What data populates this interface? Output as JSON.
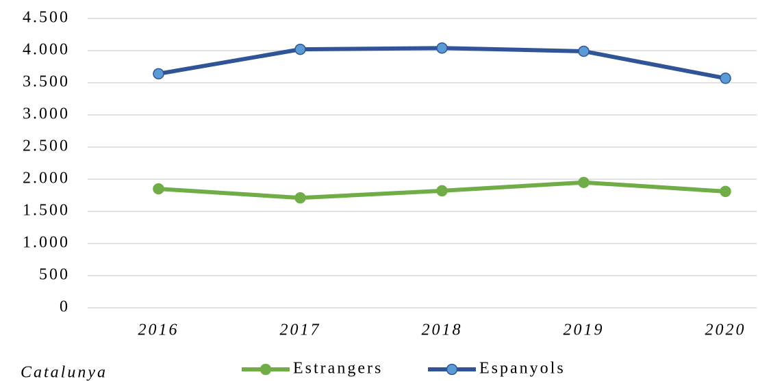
{
  "chart_data": {
    "type": "line",
    "annotation": "Catalunya",
    "categories": [
      "2016",
      "2017",
      "2018",
      "2019",
      "2020"
    ],
    "series": [
      {
        "name": "Estrangers",
        "color": "#70ad47",
        "marker_color": "#70ad47",
        "values": [
          1850,
          1710,
          1820,
          1950,
          1810
        ]
      },
      {
        "name": "Espanyols",
        "color": "#2f5597",
        "marker_color": "#5b9bd5",
        "values": [
          3640,
          4020,
          4040,
          3990,
          3570
        ]
      }
    ],
    "ylim": [
      0,
      4500
    ],
    "yticks": [
      {
        "value": 0,
        "label": "0"
      },
      {
        "value": 500,
        "label": "500"
      },
      {
        "value": 1000,
        "label": "1.000"
      },
      {
        "value": 1500,
        "label": "1.500"
      },
      {
        "value": 2000,
        "label": "2.000"
      },
      {
        "value": 2500,
        "label": "2.500"
      },
      {
        "value": 3000,
        "label": "3.000"
      },
      {
        "value": 3500,
        "label": "3.500"
      },
      {
        "value": 4000,
        "label": "4.000"
      },
      {
        "value": 4500,
        "label": "4.500"
      }
    ],
    "grid": true
  }
}
